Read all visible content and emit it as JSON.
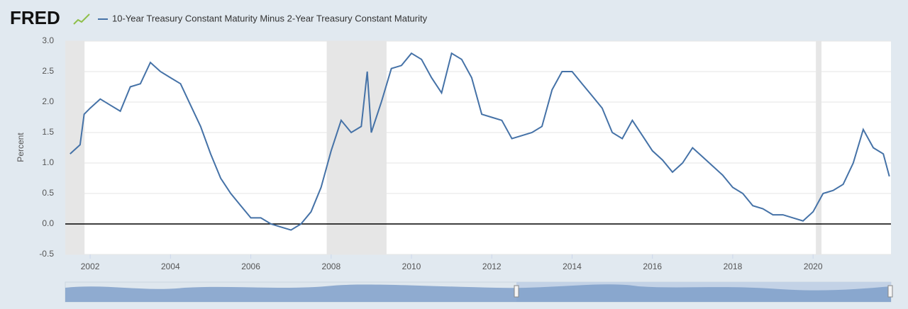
{
  "chart_data": {
    "type": "line",
    "logo": "FRED",
    "y_label": "Percent",
    "x": [
      2001.5,
      2001.75,
      2001.85,
      2002.0,
      2002.25,
      2002.5,
      2002.75,
      2003.0,
      2003.25,
      2003.5,
      2003.75,
      2004.0,
      2004.25,
      2004.5,
      2004.75,
      2005.0,
      2005.25,
      2005.5,
      2005.75,
      2006.0,
      2006.25,
      2006.5,
      2006.75,
      2007.0,
      2007.25,
      2007.5,
      2007.75,
      2008.0,
      2008.25,
      2008.5,
      2008.75,
      2008.9,
      2009.0,
      2009.25,
      2009.5,
      2009.75,
      2010.0,
      2010.25,
      2010.5,
      2010.75,
      2011.0,
      2011.25,
      2011.5,
      2011.75,
      2012.0,
      2012.25,
      2012.5,
      2012.75,
      2013.0,
      2013.25,
      2013.5,
      2013.75,
      2014.0,
      2014.25,
      2014.5,
      2014.75,
      2015.0,
      2015.25,
      2015.5,
      2015.75,
      2016.0,
      2016.25,
      2016.5,
      2016.75,
      2017.0,
      2017.25,
      2017.5,
      2017.75,
      2018.0,
      2018.25,
      2018.5,
      2018.75,
      2019.0,
      2019.25,
      2019.5,
      2019.75,
      2020.0,
      2020.25,
      2020.5,
      2020.75,
      2021.0,
      2021.25,
      2021.5,
      2021.75,
      2021.9
    ],
    "series": [
      {
        "name": "10-Year Treasury Constant Maturity Minus 2-Year Treasury Constant Maturity",
        "color": "#4572a7",
        "values": [
          1.15,
          1.3,
          1.8,
          1.9,
          2.05,
          1.95,
          1.85,
          2.25,
          2.3,
          2.65,
          2.5,
          2.4,
          2.3,
          1.95,
          1.6,
          1.15,
          0.75,
          0.5,
          0.3,
          0.1,
          0.1,
          0.0,
          -0.05,
          -0.1,
          0.0,
          0.2,
          0.6,
          1.2,
          1.7,
          1.5,
          1.6,
          2.5,
          1.5,
          2.0,
          2.55,
          2.6,
          2.8,
          2.7,
          2.4,
          2.15,
          2.8,
          2.7,
          2.4,
          1.8,
          1.75,
          1.7,
          1.4,
          1.45,
          1.5,
          1.6,
          2.2,
          2.5,
          2.5,
          2.3,
          2.1,
          1.9,
          1.5,
          1.4,
          1.7,
          1.45,
          1.2,
          1.05,
          0.85,
          1.0,
          1.25,
          1.1,
          0.95,
          0.8,
          0.6,
          0.5,
          0.3,
          0.25,
          0.15,
          0.15,
          0.1,
          0.05,
          0.2,
          0.5,
          0.55,
          0.65,
          1.0,
          1.55,
          1.25,
          1.15,
          0.78
        ]
      }
    ],
    "recessions": [
      [
        2001.38,
        2001.86
      ],
      [
        2007.89,
        2009.38
      ],
      [
        2020.07,
        2020.21
      ]
    ],
    "xlim": [
      2001.38,
      2021.94
    ],
    "xticks": [
      2002,
      2004,
      2006,
      2008,
      2010,
      2012,
      2014,
      2016,
      2018,
      2020
    ],
    "ylim": [
      -0.5,
      3
    ],
    "yticks": [
      -0.5,
      {
        "value": 0,
        "label": "0.0"
      },
      0.5,
      {
        "value": 1,
        "label": "1.0"
      },
      1.5,
      {
        "value": 2,
        "label": "2.0"
      },
      2.5,
      {
        "value": 3,
        "label": "3.0"
      }
    ],
    "grid": true
  }
}
